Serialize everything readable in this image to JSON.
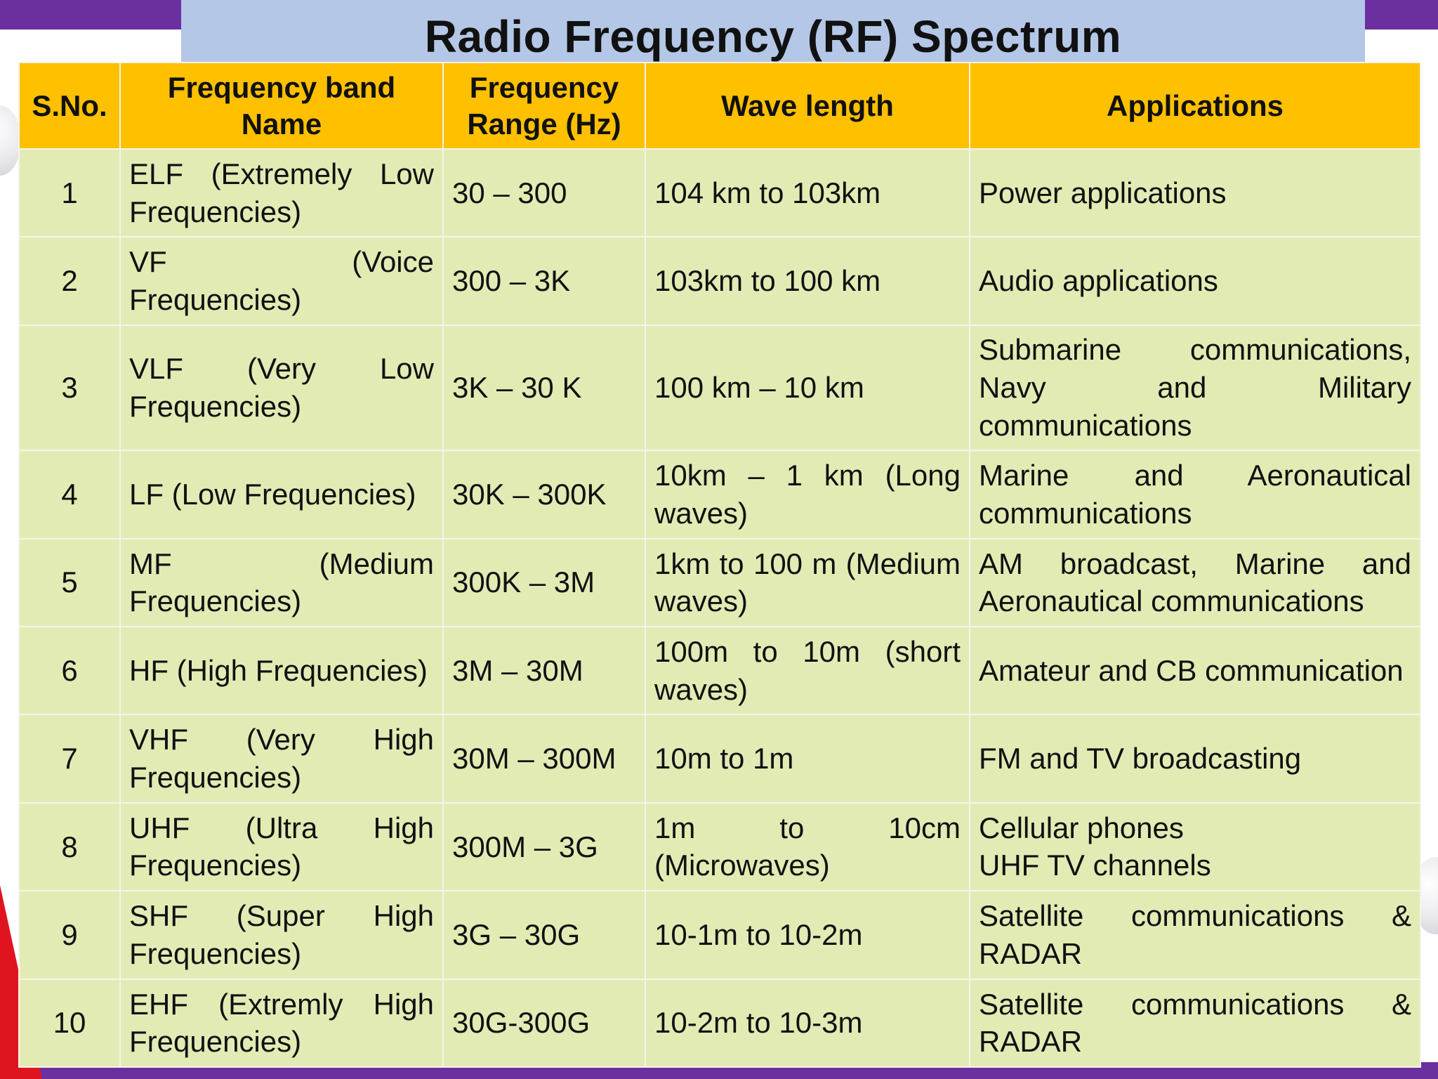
{
  "title": "Radio Frequency (RF) Spectrum",
  "table": {
    "headers": {
      "sno": "S.No.",
      "band": "Frequency band Name",
      "range": "Frequency Range (Hz)",
      "wave": "Wave length",
      "app": "Applications"
    },
    "rows": [
      {
        "sno": "1",
        "band": "ELF (Extremely Low Frequencies)",
        "range": "30 – 300",
        "wave": "104 km to 103km",
        "app": "Power applications"
      },
      {
        "sno": "2",
        "band": "VF (Voice Frequencies)",
        "range": "300 – 3K",
        "wave": "103km to 100 km",
        "app": "Audio applications"
      },
      {
        "sno": "3",
        "band": "VLF (Very Low Frequencies)",
        "range": "3K – 30 K",
        "wave": "100 km – 10 km",
        "app": "Submarine communications, Navy and Military communications"
      },
      {
        "sno": "4",
        "band": "LF (Low Frequencies)",
        "range": "30K – 300K",
        "wave": "10km – 1 km (Long waves)",
        "app": "Marine and Aeronautical communications"
      },
      {
        "sno": "5",
        "band": "MF (Medium Frequencies)",
        "range": "300K – 3M",
        "wave": "1km to 100 m (Medium waves)",
        "app": "AM broadcast, Marine and Aeronautical communications"
      },
      {
        "sno": "6",
        "band": "HF (High Frequencies)",
        "range": "3M – 30M",
        "wave": "100m to 10m (short waves)",
        "app": "Amateur and CB communication"
      },
      {
        "sno": "7",
        "band": "VHF (Very High Frequencies)",
        "range": "30M – 300M",
        "wave": "10m to 1m",
        "app": "FM and TV broadcasting"
      },
      {
        "sno": "8",
        "band": "UHF (Ultra High Frequencies)",
        "range": "300M – 3G",
        "wave": "1m to 10cm (Microwaves)",
        "app_line1": "Cellular phones",
        "app_line2": "UHF TV channels"
      },
      {
        "sno": "9",
        "band": "SHF (Super High Frequencies)",
        "range": "3G – 30G",
        "wave": "10-1m to 10-2m",
        "app": "Satellite communications & RADAR"
      },
      {
        "sno": "10",
        "band": "EHF (Extremly High Frequencies)",
        "range": "30G-300G",
        "wave": "10-2m to 10-3m",
        "app": "Satellite communications & RADAR"
      }
    ]
  }
}
